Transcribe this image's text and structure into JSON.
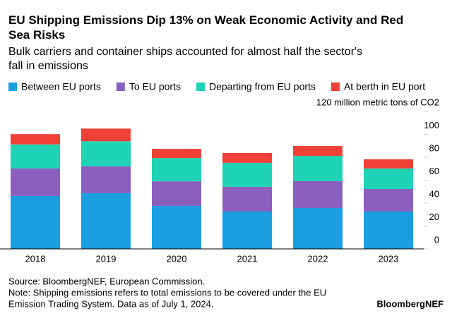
{
  "chart_data": {
    "type": "stacked-bar",
    "title": "EU Shipping Emissions Dip 13% on Weak Economic Activity and Red Sea Risks",
    "subtitle": "Bulk carriers and container ships accounted for almost half the sector's fall in emissions",
    "categories": [
      "2018",
      "2019",
      "2020",
      "2021",
      "2022",
      "2023"
    ],
    "series": [
      {
        "name": "Between EU ports",
        "color": "#1a9ee0",
        "values": [
          46.2,
          48.6,
          37.5,
          32.6,
          35.7,
          32.6
        ]
      },
      {
        "name": "To EU ports",
        "color": "#8a5fbd",
        "values": [
          24.0,
          23.4,
          21.5,
          21.6,
          23.4,
          19.7
        ]
      },
      {
        "name": "Departing from EU ports",
        "color": "#1fd4b4",
        "values": [
          21.0,
          22.0,
          20.3,
          20.9,
          22.1,
          17.9
        ]
      },
      {
        "name": "At berth in EU port",
        "color": "#ef4136",
        "values": [
          9.0,
          11.0,
          8.0,
          8.6,
          8.6,
          8.0
        ]
      }
    ],
    "ylim": [
      0,
      120
    ],
    "yticks": [
      0,
      20,
      40,
      60,
      80,
      100,
      {
        "value": 120,
        "label": "120 million metric tons of CO2"
      }
    ],
    "source": "Source: BloombergNEF, European Commission.",
    "note": [
      "Note: Shipping emissions refers to total emissions to be covered under the EU",
      "Emission Trading System. Data as of July 1, 2024."
    ],
    "brand": "BloombergNEF"
  }
}
